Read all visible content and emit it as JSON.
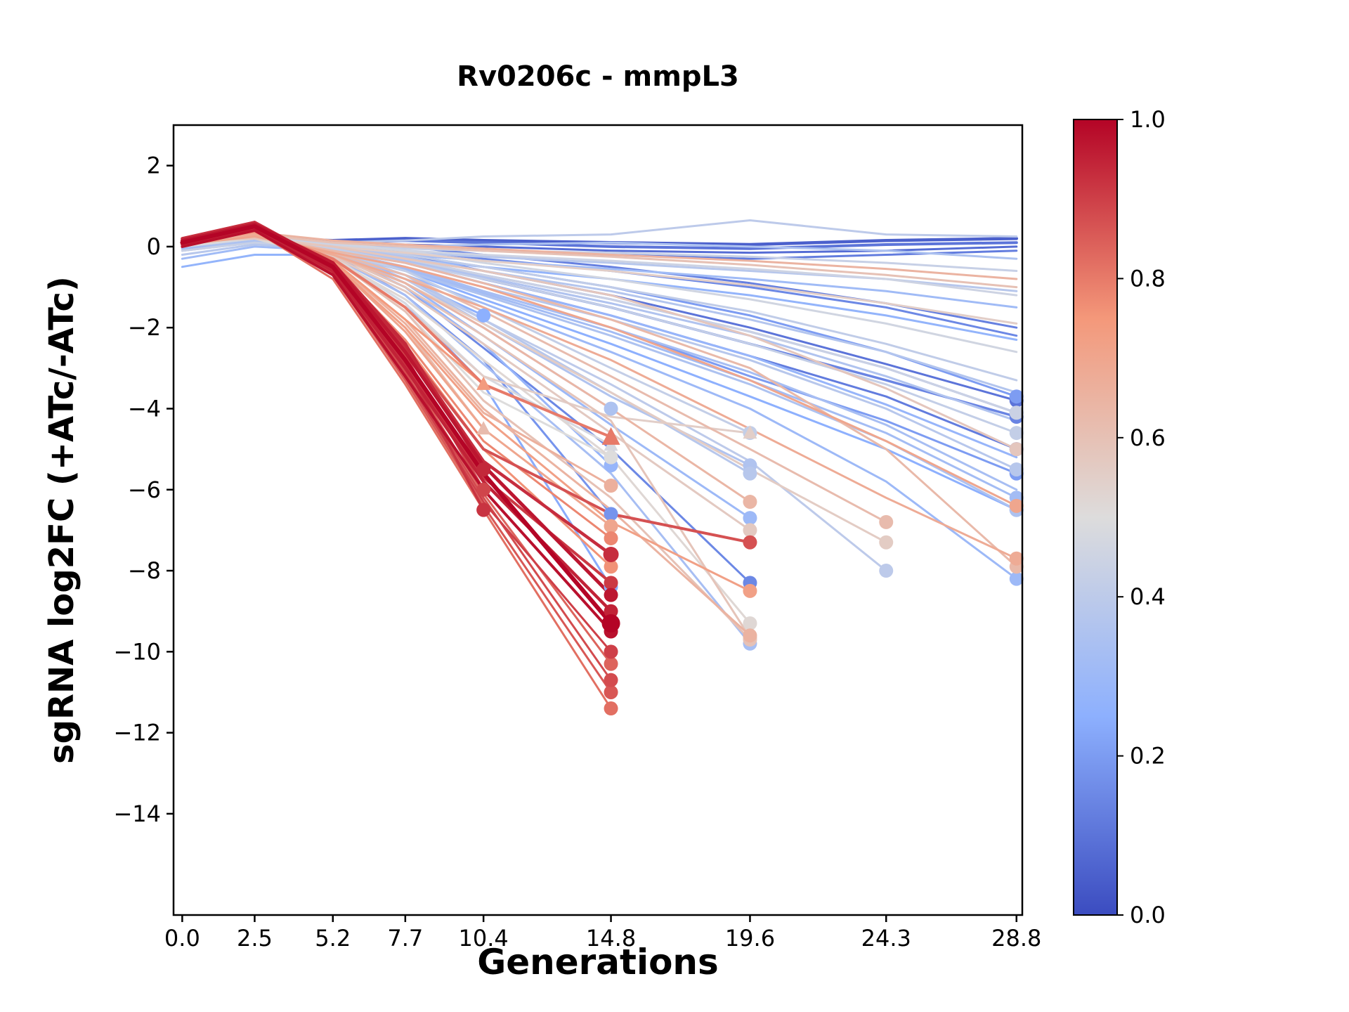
{
  "chart_data": {
    "type": "line",
    "title": "Rv0206c - mmpL3",
    "xlabel": "Generations",
    "ylabel": "sgRNA log2FC (+ATc/-ATc)",
    "x": [
      0.0,
      2.5,
      5.2,
      7.7,
      10.4,
      14.8,
      19.6,
      24.3,
      28.8
    ],
    "xtick_labels": [
      "0.0",
      "2.5",
      "5.2",
      "7.7",
      "10.4",
      "14.8",
      "19.6",
      "24.3",
      "28.8"
    ],
    "yticks": [
      2,
      0,
      -2,
      -4,
      -6,
      -8,
      -10,
      -12,
      -14
    ],
    "ytick_labels": [
      "2",
      "0",
      "−2",
      "−4",
      "−6",
      "−8",
      "−10",
      "−12",
      "−14"
    ],
    "xlim": [
      -0.3,
      29.0
    ],
    "ylim": [
      -16.5,
      3.0
    ],
    "grid": false,
    "legend": "none",
    "colormap": "coolwarm",
    "colorbar": {
      "min": 0.0,
      "max": 1.0,
      "ticks": [
        0.0,
        0.2,
        0.4,
        0.6,
        0.8,
        1.0
      ],
      "tick_labels": [
        "0.0",
        "0.2",
        "0.4",
        "0.6",
        "0.8",
        "1.0"
      ],
      "anchors": [
        [
          59,
          76,
          192
        ],
        [
          141,
          176,
          254
        ],
        [
          221,
          220,
          220
        ],
        [
          244,
          152,
          122
        ],
        [
          180,
          4,
          38
        ]
      ]
    },
    "series": [
      {
        "c": 1.0,
        "lw": 6,
        "m": "o",
        "ms": 13,
        "y": [
          0.1,
          0.5,
          -0.5,
          -2.8,
          -5.6,
          -9.3
        ]
      },
      {
        "c": 0.97,
        "lw": 5,
        "m": "o",
        "y": [
          0.15,
          0.55,
          -0.4,
          -2.6,
          -5.4,
          -8.6
        ]
      },
      {
        "c": 0.95,
        "lw": 4.5,
        "m": "o",
        "y": [
          0.05,
          0.45,
          -0.6,
          -3.0,
          -5.8,
          -9.0
        ]
      },
      {
        "c": 0.93,
        "lw": 4.5,
        "m": "o",
        "ms": 11,
        "y": [
          0.2,
          0.6,
          -0.45,
          -2.5,
          -5.3,
          -7.6
        ]
      },
      {
        "c": 0.91,
        "lw": 4,
        "m": "o",
        "y": [
          0.1,
          0.5,
          -0.55,
          -2.9,
          -5.7,
          -8.3
        ]
      },
      {
        "c": 0.98,
        "lw": 4,
        "m": "o",
        "y": [
          0.0,
          0.4,
          -0.7,
          -3.2,
          -6.0,
          -9.5
        ]
      },
      {
        "c": 0.88,
        "m": "o",
        "y": [
          0.15,
          0.5,
          -0.6,
          -3.1,
          -6.2,
          -10.7
        ]
      },
      {
        "c": 0.86,
        "m": "o",
        "y": [
          0.1,
          0.45,
          -0.7,
          -3.3,
          -6.4,
          -11.0
        ]
      },
      {
        "c": 0.84,
        "m": "o",
        "y": [
          0.2,
          0.55,
          -0.5,
          -3.0,
          -6.1,
          -10.3
        ]
      },
      {
        "c": 0.82,
        "m": "o",
        "y": [
          0.05,
          0.4,
          -0.8,
          -3.4,
          -6.5,
          -11.4
        ]
      },
      {
        "c": 0.9,
        "m": "o",
        "y": [
          0.1,
          0.45,
          -0.65,
          -3.2,
          -6.3,
          -10.0
        ]
      },
      {
        "c": 0.78,
        "m": "o",
        "y": [
          0.1,
          0.4,
          -0.45,
          -2.3,
          -4.8,
          -7.2
        ]
      },
      {
        "c": 0.76,
        "m": "o",
        "y": [
          0.05,
          0.38,
          -0.5,
          -2.4,
          -5.0,
          -7.9
        ]
      },
      {
        "c": 0.7,
        "m": "o",
        "y": [
          0.1,
          0.35,
          -0.4,
          -2.1,
          -4.5,
          -6.9
        ]
      },
      {
        "c": 0.66,
        "m": "o",
        "y": [
          0.05,
          0.3,
          -0.35,
          -1.9,
          -4.1,
          -5.9
        ]
      },
      {
        "c": 0.5,
        "m": "o",
        "y": [
          0.0,
          0.25,
          -0.3,
          -1.6,
          -3.6,
          -5.2
        ]
      },
      {
        "c": 0.48,
        "m": "t",
        "y": [
          0.0,
          0.2,
          -0.25,
          -1.4,
          -3.2,
          -4.9
        ]
      },
      {
        "c": 0.8,
        "lw": 4,
        "m": "t",
        "ms": 13,
        "y": [
          0.1,
          0.45,
          -0.3,
          -1.5,
          -3.4,
          -4.7
        ]
      },
      {
        "c": 0.94,
        "lw": 4.5,
        "m": "o",
        "y": [
          0.1,
          0.5,
          -0.4,
          -2.4,
          -5.5
        ]
      },
      {
        "c": 0.89,
        "lw": 4,
        "m": "o",
        "y": [
          0.15,
          0.48,
          -0.5,
          -2.7,
          -6.0
        ]
      },
      {
        "c": 0.92,
        "lw": 3.5,
        "m": "o",
        "y": [
          0.05,
          0.42,
          -0.55,
          -2.9,
          -6.5
        ]
      },
      {
        "c": 0.74,
        "m": "t",
        "y": [
          0.1,
          0.4,
          -0.35,
          -1.8,
          -3.4
        ]
      },
      {
        "c": 0.62,
        "m": "t",
        "y": [
          0.05,
          0.35,
          -0.4,
          -2.0,
          -4.5
        ]
      },
      {
        "c": 0.87,
        "lw": 4,
        "m": "o",
        "y": [
          0.1,
          0.4,
          -0.5,
          -2.5,
          -5.0,
          -6.6,
          -7.3
        ]
      },
      {
        "c": 0.72,
        "m": "o",
        "y": [
          0.1,
          0.35,
          -0.4,
          -2.0,
          -4.2,
          -6.8,
          -8.5
        ]
      },
      {
        "c": 0.65,
        "m": "o",
        "y": [
          0.05,
          0.3,
          -0.35,
          -1.8,
          -4.0,
          -6.5,
          -9.6
        ]
      },
      {
        "c": 0.6,
        "m": "o",
        "y": [
          0.1,
          0.3,
          -0.3,
          -1.6,
          -3.8,
          -6.2,
          -9.7
        ]
      },
      {
        "c": 0.64,
        "m": "o",
        "y": [
          0.1,
          0.3,
          -0.2,
          -0.9,
          -2.0,
          -4.0,
          -6.3
        ]
      },
      {
        "c": 0.57,
        "m": "o",
        "y": [
          0.05,
          0.25,
          -0.25,
          -1.1,
          -2.4,
          -4.6,
          -7.0
        ]
      },
      {
        "c": 0.52,
        "m": "o",
        "y": [
          0.1,
          0.2,
          -0.3,
          -1.3,
          -2.8,
          -5.2,
          -9.3
        ]
      },
      {
        "c": 0.59,
        "m": "o",
        "y": [
          0.15,
          0.3,
          -0.2,
          -1.0,
          -2.2,
          -4.3,
          -9.65
        ]
      },
      {
        "c": 0.55,
        "m": "t",
        "y": [
          0.05,
          0.3,
          -0.3,
          -1.5,
          -3.2,
          -4.2,
          -4.6
        ]
      },
      {
        "c": 0.15,
        "m": "o",
        "y": [
          0.0,
          0.1,
          -0.2,
          -1.0,
          -2.5,
          -5.0,
          -8.3
        ]
      },
      {
        "c": 0.3,
        "m": "o",
        "y": [
          0.05,
          0.2,
          -0.15,
          -0.9,
          -2.2,
          -4.4,
          -6.7
        ]
      },
      {
        "c": 0.38,
        "m": "o",
        "y": [
          0.0,
          0.2,
          -0.1,
          -0.7,
          -1.8,
          -3.6,
          -5.6
        ]
      },
      {
        "c": 0.33,
        "m": "o",
        "y": [
          0.0,
          0.15,
          -0.25,
          -1.2,
          -2.9,
          -5.6,
          -9.8
        ]
      },
      {
        "c": 0.42,
        "m": "o",
        "y": [
          0.05,
          0.25,
          -0.1,
          -0.6,
          -1.5,
          -3.0,
          -4.6
        ]
      },
      {
        "c": 0.36,
        "m": "o",
        "y": [
          0.0,
          0.2,
          -0.15,
          -0.8,
          -1.9,
          -3.7,
          -5.4
        ]
      },
      {
        "c": 0.62,
        "m": "o",
        "y": [
          0.1,
          0.3,
          -0.15,
          -0.7,
          -1.6,
          -3.2,
          -5.0,
          -6.8
        ]
      },
      {
        "c": 0.56,
        "m": "o",
        "y": [
          0.05,
          0.28,
          -0.2,
          -0.9,
          -1.9,
          -3.6,
          -5.5,
          -7.3
        ]
      },
      {
        "c": 0.4,
        "m": "o",
        "y": [
          0.1,
          0.2,
          -0.2,
          -0.8,
          -1.8,
          -3.4,
          -5.3,
          -8.0
        ]
      },
      {
        "c": 0.18,
        "m": "o",
        "y": [
          0.0,
          0.15,
          -0.2,
          -1.2,
          -2.8,
          -6.6
        ]
      },
      {
        "c": 0.28,
        "m": "o",
        "y": [
          0.05,
          0.2,
          -0.15,
          -1.0,
          -2.4,
          -5.4
        ]
      },
      {
        "c": 0.35,
        "m": "o",
        "y": [
          0.0,
          0.25,
          -0.1,
          -0.9,
          -2.0,
          -4.0
        ]
      },
      {
        "c": 0.24,
        "m": "o",
        "y": [
          0.0,
          0.15,
          -0.25,
          -1.4,
          -3.4,
          -8.4
        ]
      },
      {
        "c": 0.25,
        "m": "o",
        "y": [
          0.0,
          0.2,
          -0.1,
          -0.8,
          -1.7
        ]
      },
      {
        "c": 0.25,
        "m": "o",
        "y": [
          0.0,
          0.1,
          -0.15,
          -0.6,
          -1.3,
          -2.4,
          -3.7,
          -5.0,
          -6.5
        ]
      },
      {
        "c": 0.2,
        "m": "o",
        "y": [
          0.0,
          0.15,
          -0.1,
          -0.5,
          -1.1,
          -2.0,
          -3.2,
          -4.3,
          -5.6
        ]
      },
      {
        "c": 0.14,
        "lw": 3.5,
        "m": "o",
        "y": [
          0.0,
          0.1,
          0.0,
          -0.3,
          -0.8,
          -1.5,
          -2.4,
          -3.3,
          -4.2
        ]
      },
      {
        "c": 0.1,
        "m": "o",
        "y": [
          0.05,
          0.15,
          0.05,
          -0.2,
          -0.6,
          -1.2,
          -2.0,
          -2.9,
          -3.8
        ]
      },
      {
        "c": 0.12,
        "m": "o",
        "y": [
          0.0,
          0.1,
          -0.05,
          -0.4,
          -0.9,
          -1.7,
          -2.7,
          -3.7,
          -5.0
        ]
      },
      {
        "c": 0.38,
        "m": "o",
        "y": [
          0.0,
          0.2,
          -0.1,
          -0.5,
          -1.0,
          -1.8,
          -2.8,
          -4.0,
          -5.5
        ]
      },
      {
        "c": 0.35,
        "m": "o",
        "y": [
          -0.1,
          0.15,
          -0.15,
          -0.6,
          -1.2,
          -2.2,
          -3.4,
          -4.8,
          -6.5
        ]
      },
      {
        "c": 0.42,
        "m": "o",
        "y": [
          0.05,
          0.25,
          -0.05,
          -0.4,
          -0.8,
          -1.5,
          -2.4,
          -3.4,
          -4.6
        ]
      },
      {
        "c": 0.3,
        "m": "o",
        "y": [
          0.0,
          0.1,
          -0.2,
          -0.7,
          -1.4,
          -2.6,
          -4.0,
          -5.8,
          -8.2
        ]
      },
      {
        "c": 0.33,
        "y": [
          -0.05,
          0.2,
          -0.1,
          -0.5,
          -1.1,
          -2.0,
          -3.1,
          -4.4,
          -6.0
        ]
      },
      {
        "c": 0.44,
        "m": "o",
        "y": [
          0.1,
          0.3,
          0.0,
          -0.3,
          -0.7,
          -1.3,
          -2.1,
          -3.0,
          -4.1
        ]
      },
      {
        "c": 0.28,
        "y": [
          0.0,
          0.15,
          -0.1,
          -0.4,
          -0.9,
          -1.7,
          -2.7,
          -3.9,
          -5.2
        ]
      },
      {
        "c": 0.36,
        "y": [
          0.05,
          0.2,
          -0.05,
          -0.35,
          -0.75,
          -1.4,
          -2.2,
          -3.2,
          -4.3
        ]
      },
      {
        "c": 0.41,
        "y": [
          0.0,
          0.25,
          0.05,
          -0.2,
          -0.5,
          -1.0,
          -1.6,
          -2.4,
          -3.3
        ]
      },
      {
        "c": 0.32,
        "m": "o",
        "y": [
          -0.1,
          0.1,
          -0.15,
          -0.55,
          -1.15,
          -2.1,
          -3.3,
          -4.6,
          -6.2
        ]
      },
      {
        "c": 0.46,
        "y": [
          0.05,
          0.3,
          0.1,
          -0.1,
          -0.4,
          -0.8,
          -1.3,
          -1.9,
          -2.6
        ]
      },
      {
        "c": 0.37,
        "y": [
          0.0,
          0.2,
          0.0,
          -0.25,
          -0.6,
          -1.1,
          -1.8,
          -2.6,
          -3.6
        ]
      },
      {
        "c": 0.05,
        "lw": 4.5,
        "y": [
          0.1,
          0.2,
          0.15,
          0.2,
          0.15,
          0.1,
          0.05,
          0.15,
          0.2
        ]
      },
      {
        "c": 0.1,
        "lw": 4,
        "y": [
          0.05,
          0.15,
          0.1,
          0.15,
          0.1,
          0.0,
          -0.05,
          0.05,
          0.1
        ]
      },
      {
        "c": 0.12,
        "y": [
          0.0,
          0.1,
          0.05,
          0.0,
          -0.1,
          -0.2,
          -0.3,
          -0.2,
          -0.1
        ]
      },
      {
        "c": 0.08,
        "y": [
          0.0,
          0.15,
          0.1,
          0.05,
          0.0,
          -0.1,
          -0.15,
          -0.1,
          0.0
        ]
      },
      {
        "c": 0.15,
        "y": [
          -0.05,
          0.1,
          0.0,
          -0.1,
          -0.3,
          -0.6,
          -1.0,
          -1.5,
          -2.2
        ]
      },
      {
        "c": 0.18,
        "m": "o",
        "y": [
          0.0,
          0.1,
          -0.05,
          -0.3,
          -0.7,
          -1.3,
          -2.1,
          -3.0,
          -4.1
        ]
      },
      {
        "c": 0.2,
        "m": "o",
        "y": [
          0.0,
          0.15,
          0.0,
          -0.2,
          -0.5,
          -1.0,
          -1.7,
          -2.6,
          -3.7
        ]
      },
      {
        "c": 0.13,
        "y": [
          0.05,
          0.2,
          0.1,
          0.0,
          -0.2,
          -0.5,
          -0.9,
          -1.4,
          -2.0
        ]
      },
      {
        "c": 0.4,
        "y": [
          0.0,
          0.2,
          0.1,
          0.15,
          0.25,
          0.3,
          0.65,
          0.3,
          0.25
        ]
      },
      {
        "c": 0.35,
        "y": [
          0.0,
          0.15,
          0.05,
          0.0,
          0.05,
          0.1,
          0.0,
          -0.1,
          -0.3
        ]
      },
      {
        "c": 0.43,
        "y": [
          -0.1,
          0.1,
          0.0,
          -0.05,
          -0.1,
          -0.15,
          -0.25,
          -0.4,
          -0.6
        ]
      },
      {
        "c": 0.38,
        "y": [
          -0.2,
          0.05,
          -0.05,
          -0.15,
          -0.25,
          -0.4,
          -0.6,
          -0.8,
          -1.1
        ]
      },
      {
        "c": 0.45,
        "y": [
          0.0,
          0.2,
          0.05,
          -0.1,
          -0.2,
          -0.35,
          -0.55,
          -0.8,
          -1.2
        ]
      },
      {
        "c": 0.31,
        "y": [
          -0.3,
          0.0,
          -0.1,
          -0.2,
          -0.35,
          -0.55,
          -0.8,
          -1.1,
          -1.5
        ]
      },
      {
        "c": 0.27,
        "y": [
          -0.5,
          -0.2,
          -0.2,
          -0.3,
          -0.5,
          -0.8,
          -1.2,
          -1.7,
          -2.3
        ]
      },
      {
        "c": 0.6,
        "y": [
          0.1,
          0.3,
          0.1,
          0.0,
          -0.1,
          -0.25,
          -0.45,
          -0.7,
          -1.0
        ]
      },
      {
        "c": 0.65,
        "y": [
          0.15,
          0.35,
          0.15,
          0.05,
          -0.05,
          -0.2,
          -0.35,
          -0.55,
          -0.8
        ]
      },
      {
        "c": 0.55,
        "y": [
          0.05,
          0.25,
          0.0,
          -0.15,
          -0.35,
          -0.6,
          -0.95,
          -1.4,
          -1.9
        ]
      },
      {
        "c": 0.68,
        "m": "o",
        "y": [
          0.2,
          0.3,
          -0.2,
          -0.8,
          -1.5,
          -2.8,
          -4.5,
          -6.2,
          -7.7
        ]
      },
      {
        "c": 0.63,
        "m": "o",
        "y": [
          0.1,
          0.25,
          -0.1,
          -0.4,
          -0.9,
          -1.8,
          -3.0,
          -5.0,
          -7.9
        ]
      },
      {
        "c": 0.58,
        "m": "o",
        "y": [
          0.15,
          0.2,
          0.0,
          -0.3,
          -0.6,
          -1.2,
          -2.2,
          -3.5,
          -5.0
        ]
      },
      {
        "c": 0.7,
        "m": "o",
        "y": [
          0.05,
          0.25,
          -0.15,
          -0.5,
          -1.0,
          -2.0,
          -3.3,
          -4.8,
          -6.4
        ]
      }
    ]
  }
}
